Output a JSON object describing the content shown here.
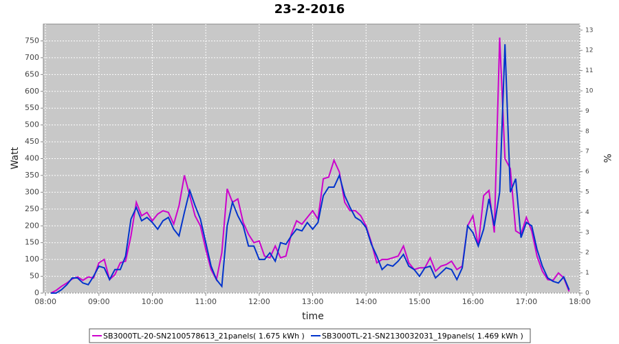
{
  "chart_data": {
    "type": "line",
    "title": "23-2-2016",
    "x_label": "time",
    "y_label": "Watt",
    "y2_label": "%",
    "x": [
      8.1,
      8.2,
      8.3,
      8.4,
      8.5,
      8.6,
      8.7,
      8.8,
      8.9,
      9.0,
      9.1,
      9.2,
      9.3,
      9.4,
      9.5,
      9.6,
      9.7,
      9.8,
      9.9,
      10.0,
      10.1,
      10.2,
      10.3,
      10.4,
      10.5,
      10.6,
      10.7,
      10.8,
      10.9,
      11.0,
      11.1,
      11.2,
      11.3,
      11.4,
      11.5,
      11.6,
      11.7,
      11.8,
      11.9,
      12.0,
      12.1,
      12.2,
      12.3,
      12.4,
      12.5,
      12.6,
      12.7,
      12.8,
      12.9,
      13.0,
      13.1,
      13.2,
      13.3,
      13.4,
      13.5,
      13.6,
      13.7,
      13.8,
      13.9,
      14.0,
      14.1,
      14.2,
      14.3,
      14.4,
      14.5,
      14.6,
      14.7,
      14.8,
      14.9,
      15.0,
      15.1,
      15.2,
      15.3,
      15.4,
      15.5,
      15.6,
      15.7,
      15.8,
      15.9,
      16.0,
      16.1,
      16.2,
      16.3,
      16.4,
      16.5,
      16.6,
      16.7,
      16.8,
      16.9,
      17.0,
      17.1,
      17.2,
      17.3,
      17.4,
      17.5,
      17.6,
      17.7,
      17.8
    ],
    "series": [
      {
        "name": "SB3000TL-20-SN2100578613_21panels( 1.675 kWh )",
        "color": "#cc00cc",
        "values": [
          0,
          8,
          20,
          30,
          42,
          48,
          38,
          48,
          45,
          90,
          100,
          40,
          55,
          90,
          95,
          170,
          270,
          230,
          240,
          215,
          235,
          245,
          240,
          205,
          260,
          350,
          290,
          230,
          200,
          130,
          70,
          40,
          120,
          310,
          270,
          280,
          210,
          175,
          150,
          155,
          110,
          105,
          140,
          105,
          110,
          175,
          215,
          205,
          225,
          245,
          220,
          340,
          345,
          395,
          360,
          270,
          245,
          245,
          230,
          200,
          150,
          90,
          100,
          100,
          105,
          110,
          140,
          90,
          70,
          75,
          75,
          105,
          65,
          80,
          85,
          95,
          70,
          80,
          200,
          230,
          140,
          290,
          305,
          180,
          760,
          400,
          370,
          185,
          175,
          225,
          185,
          110,
          65,
          40,
          38,
          60,
          45,
          5
        ]
      },
      {
        "name": "SB3000TL-21-SN2130032031_19panels( 1.469 kWh )",
        "color": "#0033cc",
        "values": [
          0,
          0,
          10,
          25,
          45,
          45,
          30,
          25,
          50,
          80,
          75,
          40,
          70,
          70,
          110,
          220,
          255,
          215,
          225,
          210,
          190,
          215,
          225,
          190,
          170,
          240,
          305,
          260,
          220,
          150,
          80,
          40,
          20,
          200,
          270,
          230,
          200,
          140,
          140,
          100,
          100,
          120,
          95,
          150,
          145,
          170,
          190,
          185,
          210,
          190,
          210,
          290,
          315,
          315,
          350,
          290,
          255,
          225,
          215,
          195,
          145,
          110,
          70,
          85,
          80,
          95,
          115,
          80,
          70,
          50,
          75,
          80,
          45,
          60,
          75,
          70,
          40,
          75,
          200,
          180,
          140,
          190,
          280,
          200,
          300,
          740,
          300,
          340,
          165,
          210,
          200,
          130,
          80,
          45,
          35,
          30,
          48,
          10
        ]
      }
    ],
    "xlim": [
      7.96,
      18.0
    ],
    "xticks": [
      {
        "value": 8,
        "label": "08:00"
      },
      {
        "value": 9,
        "label": "09:00"
      },
      {
        "value": 10,
        "label": "10:00"
      },
      {
        "value": 11,
        "label": "11:00"
      },
      {
        "value": 12,
        "label": "12:00"
      },
      {
        "value": 13,
        "label": "13:00"
      },
      {
        "value": 14,
        "label": "14:00"
      },
      {
        "value": 15,
        "label": "15:00"
      },
      {
        "value": 16,
        "label": "16:00"
      },
      {
        "value": 17,
        "label": "17:00"
      },
      {
        "value": 18,
        "label": "18:00"
      }
    ],
    "ylim": [
      0,
      800
    ],
    "yticks": [
      0,
      50,
      100,
      150,
      200,
      250,
      300,
      350,
      400,
      450,
      500,
      550,
      600,
      650,
      700,
      750
    ],
    "y2lim": [
      0,
      13.3
    ],
    "y2ticks": [
      0,
      1,
      2,
      3,
      4,
      5,
      6,
      7,
      8,
      9,
      10,
      11,
      12,
      13
    ],
    "grid": true,
    "legend": "bottom"
  }
}
